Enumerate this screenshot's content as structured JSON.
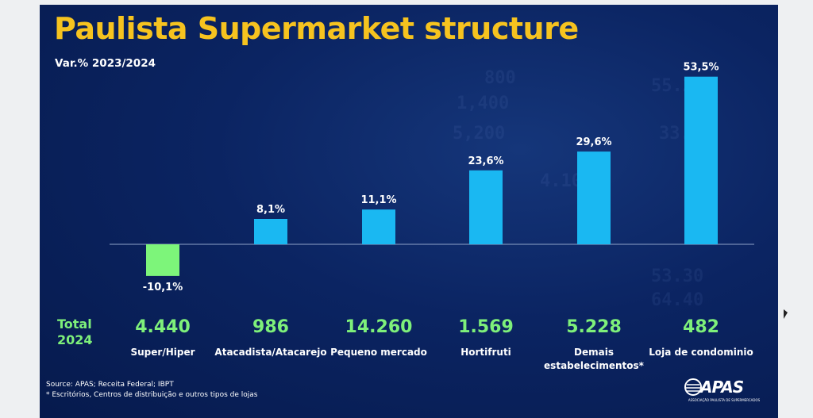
{
  "title": "Paulista Supermarket structure",
  "subtitle": "Var.% 2023/2024",
  "total_label_line1": "Total",
  "total_label_line2": "2024",
  "chart_data": {
    "type": "bar",
    "categories": [
      "Super/Hiper",
      "Atacadista/Atacarejo",
      "Pequeno mercado",
      "Hortifruti",
      "Demais estabelecimentos*",
      "Loja de condominio"
    ],
    "values": [
      -10.1,
      8.1,
      11.1,
      23.6,
      29.6,
      53.5
    ],
    "value_labels": [
      "-10,1%",
      "8,1%",
      "11,1%",
      "23,6%",
      "29,6%",
      "53,5%"
    ],
    "totals_2024": [
      "4.440",
      "986",
      "14.260",
      "1.569",
      "5.228",
      "482"
    ],
    "category_labels": [
      [
        "Super/Hiper"
      ],
      [
        "Atacadista/Atacarejo"
      ],
      [
        "Pequeno mercado"
      ],
      [
        "Hortifruti"
      ],
      [
        "Demais",
        "estabelecimentos*"
      ],
      [
        "Loja de condominio"
      ]
    ],
    "colors": {
      "positive": "#1ab8f2",
      "negative": "#7df57a",
      "axis": "#8fa3c8"
    },
    "ylim": [
      -12,
      56
    ],
    "grid": false,
    "legend": "none"
  },
  "source_note": "Source: APAS; Receita Federal; IBPT",
  "footnote": "* Escritórios, Centros de distribuição  e outros tipos de lojas",
  "logo": {
    "name": "APAS",
    "tagline": "ASSOCIAÇÃO PAULISTA DE SUPERMERCADOS"
  }
}
